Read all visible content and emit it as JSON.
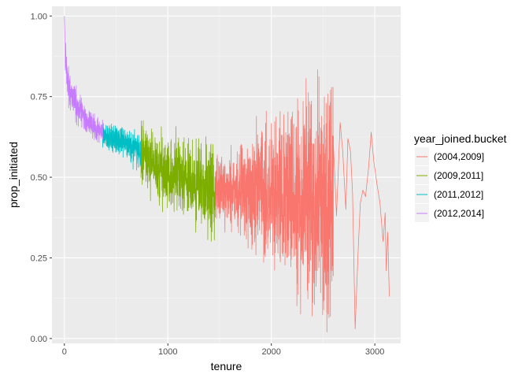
{
  "chart_data": {
    "type": "line",
    "xlabel": "tenure",
    "ylabel": "prop_initiated",
    "xlim": [
      -120,
      3250
    ],
    "ylim": [
      -0.015,
      1.03
    ],
    "x_ticks": [
      0,
      1000,
      2000,
      3000
    ],
    "x_tick_labels": [
      "0",
      "1000",
      "2000",
      "3000"
    ],
    "y_ticks": [
      0,
      0.25,
      0.5,
      0.75,
      1.0
    ],
    "y_tick_labels": [
      "0.00",
      "0.25",
      "0.50",
      "0.75",
      "1.00"
    ],
    "grid": true,
    "legend": {
      "title": "year_joined.bucket",
      "placement": "right"
    },
    "series": [
      {
        "name": "(2004,2009]",
        "color": "#F8766D",
        "tenure_range": [
          1460,
          3140
        ],
        "anchors": [
          [
            1460,
            0.47
          ],
          [
            1700,
            0.46
          ],
          [
            2000,
            0.45
          ],
          [
            2200,
            0.45
          ],
          [
            2450,
            0.44
          ],
          [
            2600,
            0.44
          ]
        ],
        "noise": [
          [
            1460,
            0.06
          ],
          [
            1700,
            0.1
          ],
          [
            2000,
            0.15
          ],
          [
            2300,
            0.22
          ],
          [
            2450,
            0.25
          ],
          [
            2600,
            0.25
          ]
        ],
        "sparse_points": [
          [
            2600,
            0.6
          ],
          [
            2630,
            0.38
          ],
          [
            2665,
            0.67
          ],
          [
            2690,
            0.58
          ],
          [
            2720,
            0.4
          ],
          [
            2740,
            0.62
          ],
          [
            2765,
            0.58
          ],
          [
            2785,
            0.45
          ],
          [
            2810,
            0.03
          ],
          [
            2840,
            0.28
          ],
          [
            2860,
            0.42
          ],
          [
            2885,
            0.46
          ],
          [
            2910,
            0.44
          ],
          [
            2940,
            0.53
          ],
          [
            2965,
            0.64
          ],
          [
            2990,
            0.55
          ],
          [
            3020,
            0.48
          ],
          [
            3050,
            0.42
          ],
          [
            3080,
            0.3
          ],
          [
            3100,
            0.39
          ],
          [
            3110,
            0.21
          ],
          [
            3125,
            0.33
          ],
          [
            3140,
            0.13
          ]
        ]
      },
      {
        "name": "(2009,2011]",
        "color": "#7CAE00",
        "tenure_range": [
          740,
          1460
        ],
        "anchors": [
          [
            740,
            0.57
          ],
          [
            900,
            0.53
          ],
          [
            1100,
            0.5
          ],
          [
            1300,
            0.47
          ],
          [
            1460,
            0.46
          ]
        ],
        "noise": [
          [
            740,
            0.06
          ],
          [
            900,
            0.07
          ],
          [
            1100,
            0.08
          ],
          [
            1300,
            0.09
          ],
          [
            1460,
            0.1
          ]
        ]
      },
      {
        "name": "(2011,2012]",
        "color": "#00BFC4",
        "tenure_range": [
          370,
          740
        ],
        "anchors": [
          [
            370,
            0.63
          ],
          [
            550,
            0.61
          ],
          [
            740,
            0.58
          ]
        ],
        "noise": [
          [
            370,
            0.025
          ],
          [
            550,
            0.03
          ],
          [
            740,
            0.04
          ]
        ]
      },
      {
        "name": "(2012,2014]",
        "color": "#C77CFF",
        "tenure_range": [
          0,
          370
        ],
        "anchors": [
          [
            0,
            0.91
          ],
          [
            20,
            0.82
          ],
          [
            60,
            0.76
          ],
          [
            120,
            0.72
          ],
          [
            200,
            0.68
          ],
          [
            300,
            0.65
          ],
          [
            370,
            0.64
          ]
        ],
        "noise": [
          [
            0,
            0.04
          ],
          [
            100,
            0.035
          ],
          [
            370,
            0.025
          ]
        ]
      }
    ]
  }
}
